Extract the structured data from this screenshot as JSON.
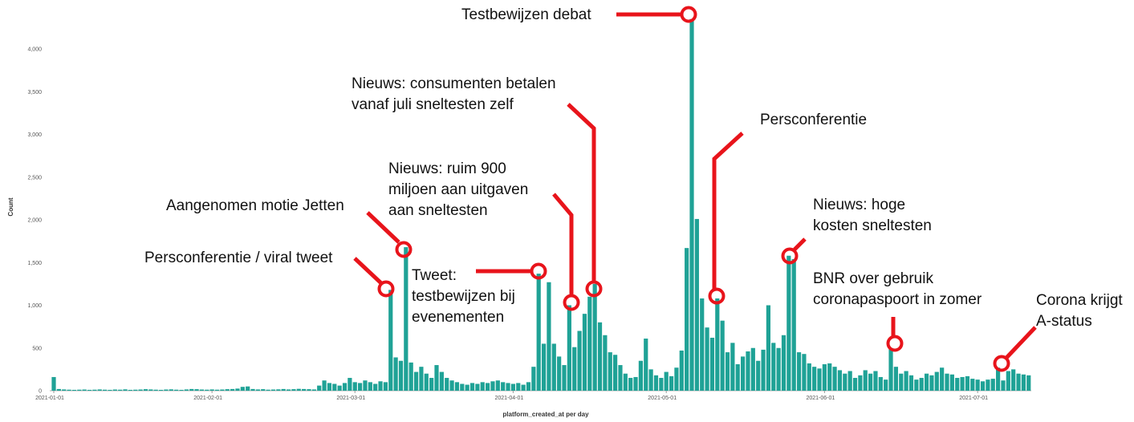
{
  "chart_data": {
    "type": "bar",
    "x_label": "platform_created_at per day",
    "y_label": "Count",
    "color": "#1fa296",
    "ylim": [
      0,
      4400
    ],
    "yticks": [
      0,
      500,
      {
        "value": 1000,
        "label": "1,000"
      },
      {
        "value": 1500,
        "label": "1,500"
      },
      {
        "value": 2000,
        "label": "2,000"
      },
      {
        "value": 2500,
        "label": "2,500"
      },
      {
        "value": 3000,
        "label": "3,000"
      },
      {
        "value": 3500,
        "label": "3,500"
      },
      {
        "value": 4000,
        "label": "4,000"
      }
    ],
    "grid": false,
    "categories": [
      "2021-01-01",
      null,
      null,
      null,
      null,
      null,
      null,
      null,
      null,
      null,
      null,
      null,
      null,
      null,
      null,
      null,
      null,
      null,
      null,
      null,
      null,
      null,
      null,
      null,
      null,
      null,
      null,
      null,
      null,
      null,
      null,
      "2021-02-01",
      null,
      null,
      null,
      null,
      null,
      null,
      null,
      null,
      null,
      null,
      null,
      null,
      null,
      null,
      null,
      null,
      null,
      null,
      null,
      null,
      null,
      null,
      null,
      null,
      null,
      null,
      null,
      "2021-03-01",
      null,
      null,
      null,
      null,
      null,
      null,
      null,
      null,
      null,
      null,
      null,
      null,
      null,
      null,
      null,
      null,
      null,
      null,
      null,
      null,
      null,
      null,
      null,
      null,
      null,
      null,
      null,
      null,
      null,
      null,
      "2021-04-01",
      null,
      null,
      null,
      null,
      null,
      null,
      null,
      null,
      null,
      null,
      null,
      null,
      null,
      null,
      null,
      null,
      null,
      null,
      null,
      null,
      null,
      null,
      null,
      null,
      null,
      null,
      null,
      null,
      null,
      "2021-05-01",
      null,
      null,
      null,
      null,
      null,
      null,
      null,
      null,
      null,
      null,
      null,
      null,
      null,
      null,
      null,
      null,
      null,
      null,
      null,
      null,
      null,
      null,
      null,
      null,
      null,
      null,
      null,
      null,
      null,
      null,
      "2021-06-01",
      null,
      null,
      null,
      null,
      null,
      null,
      null,
      null,
      null,
      null,
      null,
      null,
      null,
      null,
      null,
      null,
      null,
      null,
      null,
      null,
      null,
      null,
      null,
      null,
      null,
      null,
      null,
      null,
      null,
      "2021-07-01",
      null,
      null,
      null,
      null,
      null,
      null,
      null,
      null,
      null,
      null
    ],
    "values": [
      160,
      20,
      15,
      12,
      10,
      12,
      14,
      10,
      12,
      15,
      12,
      10,
      14,
      12,
      16,
      10,
      12,
      14,
      18,
      15,
      12,
      10,
      14,
      16,
      12,
      10,
      15,
      20,
      18,
      14,
      12,
      15,
      12,
      14,
      18,
      20,
      25,
      45,
      50,
      20,
      15,
      18,
      12,
      14,
      16,
      20,
      15,
      18,
      22,
      20,
      18,
      15,
      60,
      120,
      90,
      80,
      60,
      90,
      150,
      100,
      90,
      120,
      100,
      80,
      110,
      100,
      1180,
      390,
      350,
      1680,
      330,
      220,
      280,
      200,
      150,
      300,
      220,
      150,
      120,
      100,
      80,
      70,
      90,
      80,
      100,
      90,
      110,
      120,
      100,
      90,
      80,
      90,
      70,
      100,
      280,
      1370,
      550,
      1270,
      550,
      400,
      300,
      1000,
      510,
      700,
      900,
      1100,
      1250,
      800,
      650,
      450,
      420,
      300,
      200,
      150,
      160,
      350,
      610,
      250,
      180,
      150,
      220,
      170,
      270,
      470,
      1670,
      4350,
      2010,
      1080,
      740,
      620,
      1080,
      820,
      450,
      560,
      310,
      400,
      460,
      500,
      350,
      480,
      1000,
      560,
      500,
      650,
      1580,
      1540,
      450,
      430,
      320,
      280,
      260,
      310,
      320,
      280,
      240,
      200,
      230,
      150,
      180,
      240,
      200,
      230,
      160,
      130,
      500,
      280,
      200,
      230,
      180,
      130,
      150,
      200,
      180,
      220,
      270,
      200,
      190,
      150,
      160,
      170,
      140,
      130,
      110,
      130,
      140,
      270,
      120,
      230,
      250,
      200,
      190,
      180
    ],
    "annotations": [
      {
        "lines": [
          "Testbewijzen debat"
        ]
      },
      {
        "lines": [
          "Nieuws: consumenten betalen",
          "vanaf juli sneltesten zelf"
        ]
      },
      {
        "lines": [
          "Persconferentie"
        ]
      },
      {
        "lines": [
          "Nieuws: ruim 900",
          "miljoen aan uitgaven",
          "aan sneltesten"
        ]
      },
      {
        "lines": [
          "Aangenomen motie Jetten"
        ]
      },
      {
        "lines": [
          "Persconferentie / viral tweet"
        ]
      },
      {
        "lines": [
          "Tweet:",
          "testbewijzen bij",
          "evenementen"
        ]
      },
      {
        "lines": [
          "Nieuws: hoge",
          "kosten sneltesten"
        ]
      },
      {
        "lines": [
          "BNR over gebruik",
          "coronapaspoort in zomer"
        ]
      },
      {
        "lines": [
          "Corona krijgt",
          "A-status"
        ]
      }
    ]
  }
}
